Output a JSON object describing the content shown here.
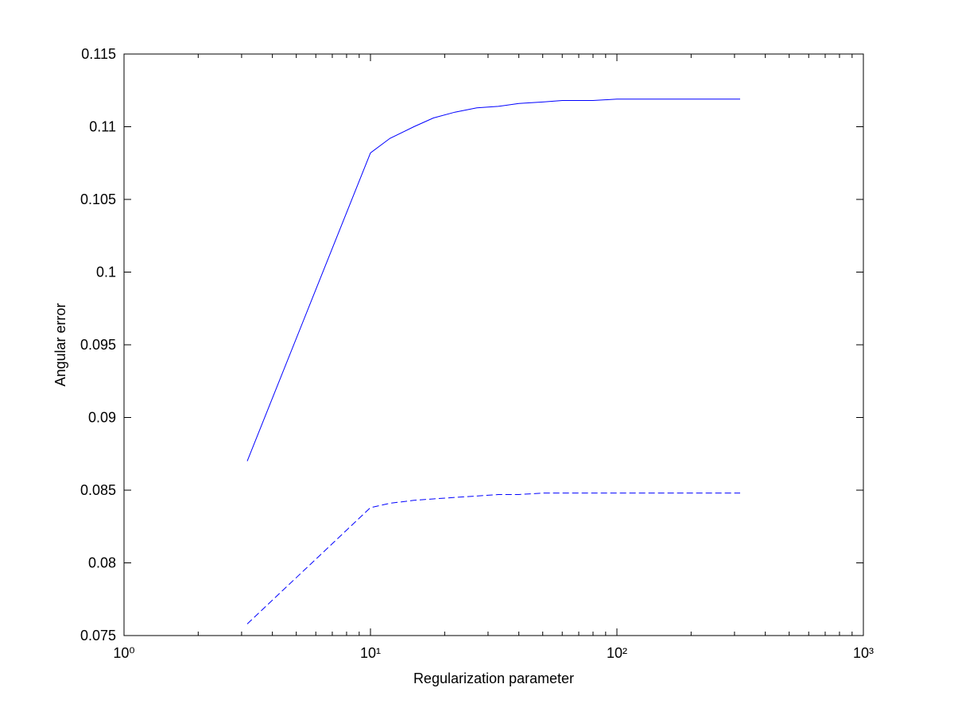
{
  "chart_data": {
    "type": "line",
    "xlabel": "Regularization parameter",
    "ylabel": "Angular error",
    "xscale": "log",
    "xlim": [
      1,
      1000
    ],
    "xticks": [
      {
        "value": 1,
        "label": "10⁰"
      },
      {
        "value": 10,
        "label": "10¹"
      },
      {
        "value": 100,
        "label": "10²"
      },
      {
        "value": 1000,
        "label": "10³"
      }
    ],
    "ylim": [
      0.075,
      0.115
    ],
    "yticks": [
      0.075,
      0.08,
      0.085,
      0.09,
      0.095,
      0.1,
      0.105,
      0.11,
      0.115
    ],
    "grid": false,
    "x": [
      3.162,
      10,
      12,
      15,
      18,
      22,
      27,
      33,
      40,
      50,
      60,
      80,
      100,
      150,
      200,
      316.2
    ],
    "series": [
      {
        "color": "#0000ff",
        "line_style": "solid",
        "values": [
          0.087,
          0.1082,
          0.1092,
          0.11,
          0.1106,
          0.111,
          0.1113,
          0.1114,
          0.1116,
          0.1117,
          0.1118,
          0.1118,
          0.1119,
          0.1119,
          0.1119,
          0.1119
        ]
      },
      {
        "color": "#0000ff",
        "line_style": "dashed",
        "values": [
          0.0758,
          0.0838,
          0.0841,
          0.0843,
          0.0844,
          0.0845,
          0.0846,
          0.0847,
          0.0847,
          0.0848,
          0.0848,
          0.0848,
          0.0848,
          0.0848,
          0.0848,
          0.0848
        ]
      }
    ]
  }
}
